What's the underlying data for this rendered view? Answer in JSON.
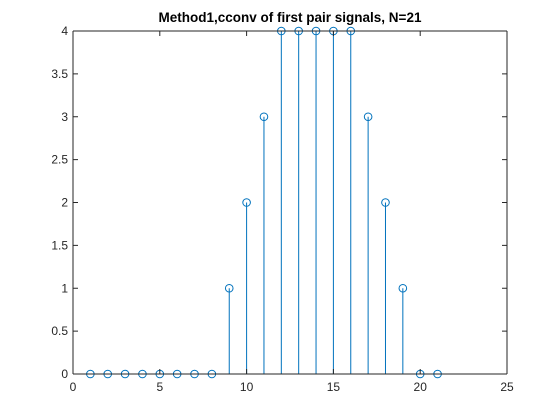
{
  "chart_data": {
    "type": "stem",
    "title": "Method1,cconv of first pair signals, N=21",
    "xlabel": "",
    "ylabel": "",
    "xlim": [
      0,
      25
    ],
    "ylim": [
      0,
      4
    ],
    "xticks": [
      0,
      5,
      10,
      15,
      20,
      25
    ],
    "yticks": [
      0,
      0.5,
      1,
      1.5,
      2,
      2.5,
      3,
      3.5,
      4
    ],
    "xtick_labels": [
      "0",
      "5",
      "10",
      "15",
      "20",
      "25"
    ],
    "ytick_labels": [
      "0",
      "0.5",
      "1",
      "1.5",
      "2",
      "2.5",
      "3",
      "3.5",
      "4"
    ],
    "grid": false,
    "series": [
      {
        "color": "#0072BD",
        "marker": "circle",
        "x": [
          1,
          2,
          3,
          4,
          5,
          6,
          7,
          8,
          9,
          10,
          11,
          12,
          13,
          14,
          15,
          16,
          17,
          18,
          19,
          20,
          21
        ],
        "values": [
          0,
          0,
          0,
          0,
          0,
          0,
          0,
          0,
          1,
          2,
          3,
          4,
          4,
          4,
          4,
          4,
          3,
          2,
          1,
          0,
          0
        ]
      }
    ]
  }
}
